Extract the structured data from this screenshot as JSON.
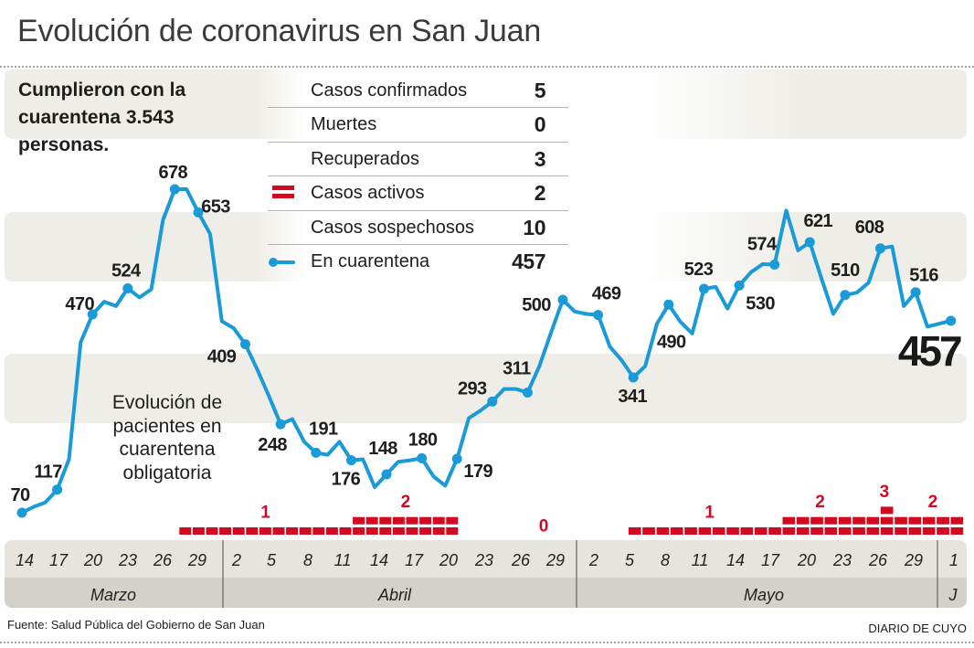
{
  "page": {
    "title": "Evolución de coronavirus en San Juan",
    "highlight": "Cumplieron con la cuarentena 3.543 personas.",
    "annotation": "Evolución de pacientes en cuarentena obligatoria",
    "source": "Fuente: Salud Pública del Gobierno de San Juan",
    "brand": "DIARIO DE CUYO"
  },
  "legend": {
    "rows": [
      {
        "label": "Casos confirmados",
        "value": "5",
        "icon": ""
      },
      {
        "label": "Muertes",
        "value": "0",
        "icon": ""
      },
      {
        "label": "Recuperados",
        "value": "3",
        "icon": ""
      },
      {
        "label": "Casos activos",
        "value": "2",
        "icon": "red-double-bar-icon"
      },
      {
        "label": "Casos sospechosos",
        "value": "10",
        "icon": ""
      },
      {
        "label": "En cuarentena",
        "value": "457",
        "icon": "blue-line-dot-icon"
      }
    ]
  },
  "colors": {
    "line": "#1a9ad6",
    "active": "#d20a1f",
    "axis_separator": "#6e6e6e"
  },
  "chart_data": {
    "type": "line",
    "title": "Evolución de pacientes en cuarentena obligatoria",
    "xlabel": "",
    "ylabel": "",
    "grid": false,
    "legend_position": "top-center",
    "x_ticks": [
      {
        "label": "14"
      },
      {
        "label": "17"
      },
      {
        "label": "20"
      },
      {
        "label": "23"
      },
      {
        "label": "26"
      },
      {
        "label": "29"
      },
      {
        "label": "2"
      },
      {
        "label": "5"
      },
      {
        "label": "8"
      },
      {
        "label": "11"
      },
      {
        "label": "14"
      },
      {
        "label": "17"
      },
      {
        "label": "20"
      },
      {
        "label": "23"
      },
      {
        "label": "26"
      },
      {
        "label": "29"
      },
      {
        "label": "2"
      },
      {
        "label": "5"
      },
      {
        "label": "8"
      },
      {
        "label": "11"
      },
      {
        "label": "14"
      },
      {
        "label": "17"
      },
      {
        "label": "20"
      },
      {
        "label": "23"
      },
      {
        "label": "26"
      },
      {
        "label": "29"
      },
      {
        "label": "1"
      }
    ],
    "months": [
      {
        "label": "Marzo"
      },
      {
        "label": "Abril"
      },
      {
        "label": "Mayo"
      },
      {
        "label": "J"
      }
    ],
    "series": [
      {
        "name": "En cuarentena",
        "values": [
          70,
          82,
          91,
          117,
          178,
          413,
          470,
          496,
          487,
          524,
          505,
          522,
          645,
          678,
          678,
          653,
          630,
          456,
          442,
          409,
          358,
          304,
          248,
          258,
          213,
          191,
          187,
          213,
          176,
          178,
          122,
          148,
          173,
          176,
          180,
          144,
          125,
          179,
          260,
          275,
          293,
          318,
          318,
          311,
          364,
          433,
          500,
          476,
          471,
          469,
          404,
          376,
          341,
          364,
          451,
          490,
          455,
          431,
          523,
          527,
          482,
          530,
          558,
          575,
          574,
          655,
          604,
          621,
          544,
          471,
          510,
          515,
          536,
          608,
          612,
          487,
          516,
          445,
          451,
          457
        ]
      }
    ],
    "point_labels": [
      {
        "index": 0,
        "value": 70
      },
      {
        "index": 3,
        "value": 117
      },
      {
        "index": 6,
        "value": 470
      },
      {
        "index": 9,
        "value": 524
      },
      {
        "index": 13,
        "value": 678
      },
      {
        "index": 15,
        "value": 653
      },
      {
        "index": 19,
        "value": 409
      },
      {
        "index": 22,
        "value": 248
      },
      {
        "index": 25,
        "value": 191
      },
      {
        "index": 28,
        "value": 176
      },
      {
        "index": 31,
        "value": 148
      },
      {
        "index": 34,
        "value": 180
      },
      {
        "index": 37,
        "value": 179
      },
      {
        "index": 40,
        "value": 293
      },
      {
        "index": 43,
        "value": 311
      },
      {
        "index": 46,
        "value": 500
      },
      {
        "index": 49,
        "value": 469
      },
      {
        "index": 52,
        "value": 341
      },
      {
        "index": 55,
        "value": 490
      },
      {
        "index": 58,
        "value": 523
      },
      {
        "index": 61,
        "value": 530
      },
      {
        "index": 64,
        "value": 574
      },
      {
        "index": 67,
        "value": 621
      },
      {
        "index": 70,
        "value": 510
      },
      {
        "index": 73,
        "value": 608
      },
      {
        "index": 76,
        "value": 516
      },
      {
        "index": 79,
        "value": 457,
        "emphasis": true
      }
    ],
    "active_cases": {
      "name": "Casos activos",
      "segments": [
        {
          "value": 1,
          "days": 13
        },
        {
          "value": 2,
          "days": 8
        },
        {
          "value": 0,
          "days": null
        },
        {
          "value": 1,
          "days": 11
        },
        {
          "value": 2,
          "days": 7
        },
        {
          "value": 3,
          "days": 1
        },
        {
          "value": 2,
          "days": 5
        }
      ]
    }
  }
}
